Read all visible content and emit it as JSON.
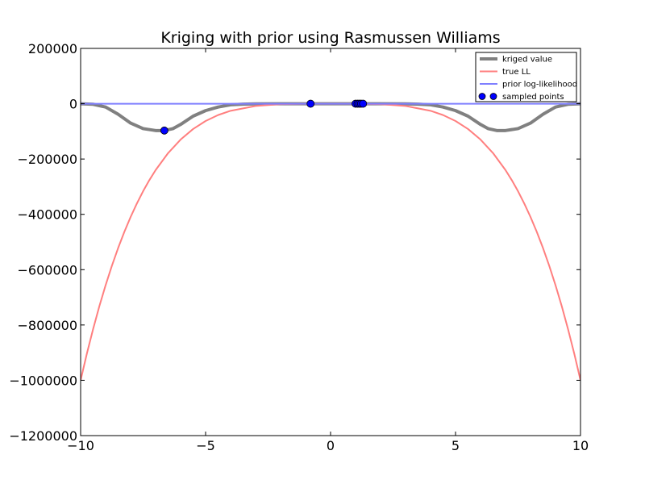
{
  "chart_data": {
    "type": "line",
    "title": "Kriging with prior using Rasmussen Williams",
    "xlabel": "",
    "ylabel": "",
    "xlim": [
      -10,
      10
    ],
    "ylim": [
      -1200000,
      200000
    ],
    "grid": false,
    "legend_placement": "top-right",
    "x_ticks": [
      -10,
      -5,
      0,
      5,
      10
    ],
    "x_tick_labels": [
      "−10",
      "−5",
      "0",
      "5",
      "10"
    ],
    "y_ticks": [
      200000,
      0,
      -200000,
      -400000,
      -600000,
      -800000,
      -1000000,
      -1200000
    ],
    "y_tick_labels": [
      "200000",
      "0",
      "−200000",
      "−400000",
      "−600000",
      "−800000",
      "−1000000",
      "−1200000"
    ],
    "series": [
      {
        "name": "kriged value",
        "kind": "line",
        "color": "#808080",
        "x": [
          -10,
          -9.5,
          -9,
          -8.5,
          -8,
          -7.5,
          -7,
          -6.65,
          -6.3,
          -6,
          -5.5,
          -5,
          -4.5,
          -4,
          -3.5,
          -3,
          -2,
          -1,
          0,
          1,
          2,
          3,
          3.5,
          4,
          4.5,
          5,
          5.5,
          6,
          6.3,
          6.65,
          7,
          7.5,
          8,
          8.5,
          9,
          9.5,
          10
        ],
        "y": [
          0,
          -2000,
          -12000,
          -38000,
          -70000,
          -90000,
          -97000,
          -97000,
          -90000,
          -75000,
          -45000,
          -25000,
          -12000,
          -4000,
          -1500,
          -500,
          0,
          0,
          0,
          0,
          0,
          -500,
          -1500,
          -4000,
          -12000,
          -25000,
          -45000,
          -75000,
          -90000,
          -97000,
          -97000,
          -90000,
          -70000,
          -38000,
          -12000,
          -2000,
          0
        ]
      },
      {
        "name": "true LL",
        "kind": "line",
        "color": "#ff7f7f",
        "x": [
          -10,
          -9.75,
          -9.5,
          -9.25,
          -9,
          -8.75,
          -8.5,
          -8.25,
          -8,
          -7.75,
          -7.5,
          -7.25,
          -7,
          -6.5,
          -6,
          -5.5,
          -5,
          -4.5,
          -4,
          -3,
          -2,
          -1,
          0,
          1,
          2,
          3,
          4,
          4.5,
          5,
          5.5,
          6,
          6.5,
          7,
          7.25,
          7.5,
          7.75,
          8,
          8.25,
          8.5,
          8.75,
          9,
          9.25,
          9.5,
          9.75,
          10
        ],
        "y": [
          -1000000,
          -903600,
          -814500,
          -732000,
          -656100,
          -586200,
          -522000,
          -463300,
          -409600,
          -360800,
          -316400,
          -276300,
          -240100,
          -178500,
          -129600,
          -91500,
          -62500,
          -41000,
          -25600,
          -8100,
          -1600,
          -100,
          0,
          -100,
          -1600,
          -8100,
          -25600,
          -41000,
          -62500,
          -91500,
          -129600,
          -178500,
          -240100,
          -276300,
          -316400,
          -360800,
          -409600,
          -463300,
          -522000,
          -586200,
          -656100,
          -732000,
          -814500,
          -903600,
          -1000000
        ]
      },
      {
        "name": "prior log-likelihood",
        "kind": "line",
        "color": "#7f7fff",
        "x": [
          -10,
          10
        ],
        "y": [
          0,
          0
        ]
      },
      {
        "name": "sampled points",
        "kind": "scatter",
        "color": "#0000ff",
        "x": [
          -6.65,
          -0.8,
          1.0,
          1.08,
          1.15,
          1.22,
          1.3
        ],
        "y": [
          -97000,
          0,
          0,
          0,
          0,
          0,
          0
        ]
      }
    ]
  }
}
